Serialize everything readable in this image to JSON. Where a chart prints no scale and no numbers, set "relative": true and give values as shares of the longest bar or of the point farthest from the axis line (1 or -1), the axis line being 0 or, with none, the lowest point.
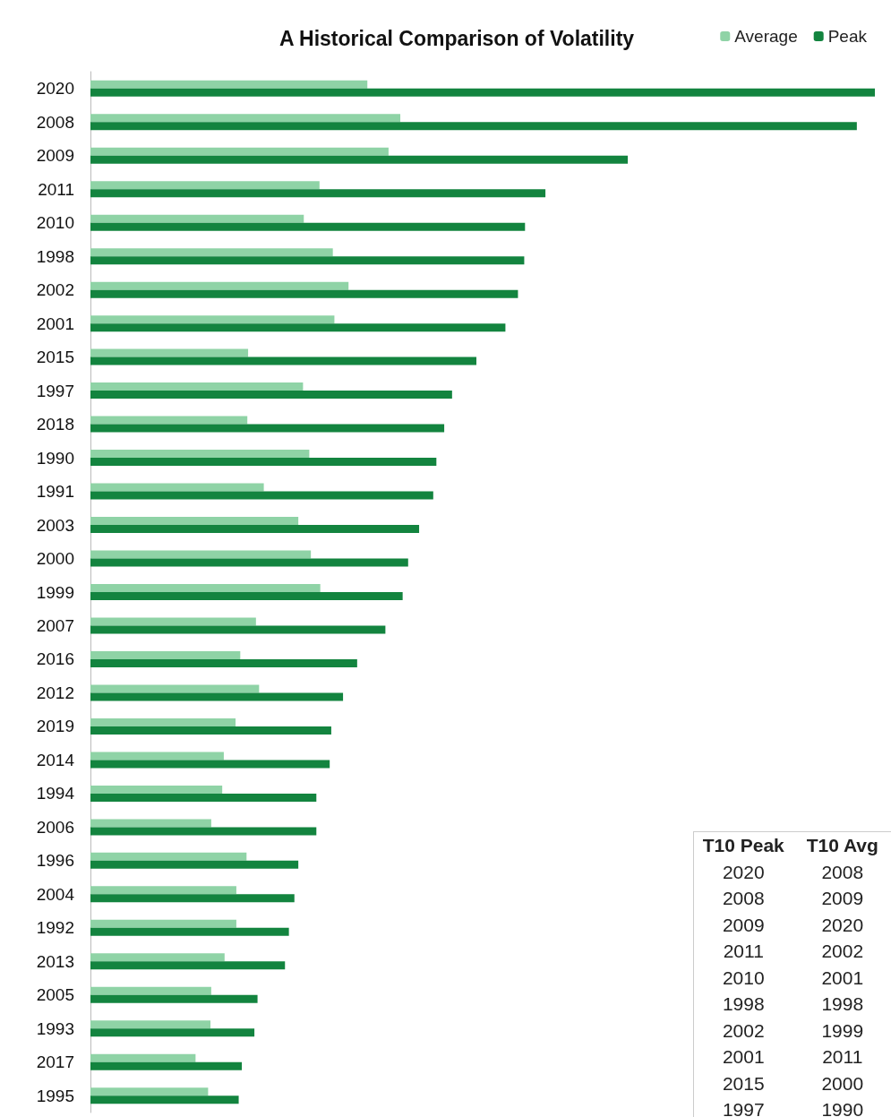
{
  "chart_data": {
    "type": "bar",
    "orientation": "horizontal",
    "relative": true,
    "title": "A Historical Comparison of Volatility",
    "categories": [
      "2020",
      "2008",
      "2009",
      "2011",
      "2010",
      "1998",
      "2002",
      "2001",
      "2015",
      "1997",
      "2018",
      "1990",
      "1991",
      "2003",
      "2000",
      "1999",
      "2007",
      "2016",
      "2012",
      "2019",
      "2014",
      "1994",
      "2006",
      "1996",
      "2004",
      "1992",
      "2013",
      "2005",
      "1993",
      "2017",
      "1995"
    ],
    "series": [
      {
        "name": "Average",
        "color": "#8fd3a6",
        "values": [
          0.353,
          0.395,
          0.38,
          0.292,
          0.272,
          0.309,
          0.329,
          0.311,
          0.201,
          0.271,
          0.2,
          0.279,
          0.221,
          0.265,
          0.281,
          0.293,
          0.211,
          0.191,
          0.215,
          0.185,
          0.17,
          0.168,
          0.154,
          0.199,
          0.186,
          0.186,
          0.171,
          0.154,
          0.153,
          0.134,
          0.15
        ]
      },
      {
        "name": "Peak",
        "color": "#13843f",
        "values": [
          1,
          0.977,
          0.685,
          0.58,
          0.554,
          0.553,
          0.545,
          0.529,
          0.492,
          0.461,
          0.451,
          0.441,
          0.437,
          0.419,
          0.405,
          0.398,
          0.376,
          0.34,
          0.322,
          0.307,
          0.305,
          0.288,
          0.288,
          0.265,
          0.26,
          0.253,
          0.248,
          0.213,
          0.209,
          0.193,
          0.189
        ]
      }
    ],
    "legend": "top right",
    "annotations": [
      "T10 Peak",
      "T10 Avg",
      "2020",
      "2008",
      "2008",
      "2009",
      "2009",
      "2020",
      "2011",
      "2002",
      "2010",
      "2001",
      "1998",
      "1998",
      "2002",
      "1999",
      "2001",
      "2011",
      "2015",
      "2000",
      "1997",
      "1990"
    ]
  }
}
